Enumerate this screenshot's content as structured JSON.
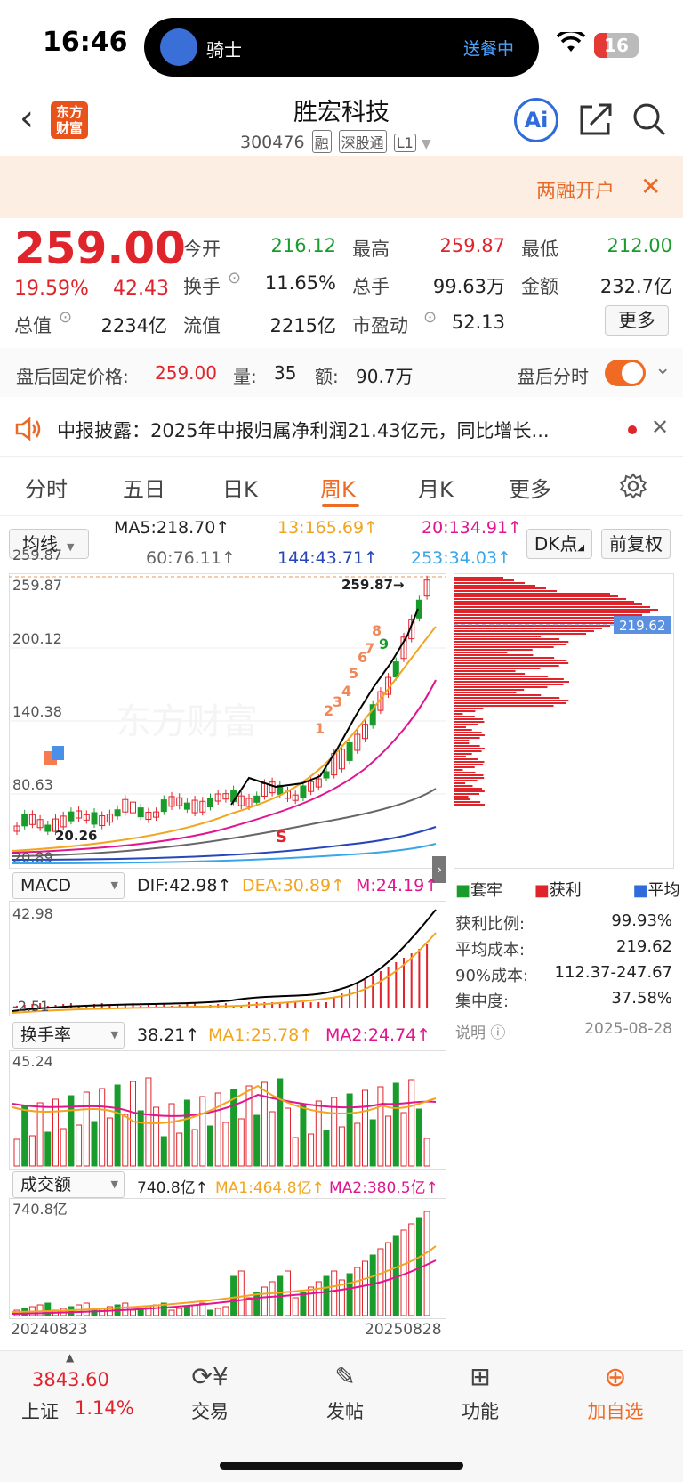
{
  "status": {
    "time": "16:46",
    "activity_name": "骑士",
    "activity_status": "送餐中",
    "battery": "16"
  },
  "header": {
    "title": "胜宏科技",
    "code": "300476",
    "tags": [
      "融",
      "深股通",
      "L1"
    ],
    "logo_text": "东方财富",
    "ai_label": "Ai"
  },
  "banner": {
    "text": "两融开户"
  },
  "quote": {
    "price": "259.00",
    "change_pct": "19.59%",
    "change_amt": "42.43",
    "fields": [
      {
        "label": "今开",
        "value": "216.12",
        "color": "green"
      },
      {
        "label": "最高",
        "value": "259.87",
        "color": "red"
      },
      {
        "label": "最低",
        "value": "212.00",
        "color": "green"
      },
      {
        "label": "换手",
        "value": "11.65%"
      },
      {
        "label": "总手",
        "value": "99.63万"
      },
      {
        "label": "金额",
        "value": "232.7亿"
      },
      {
        "label": "总值",
        "value": "2234亿"
      },
      {
        "label": "流值",
        "value": "2215亿"
      },
      {
        "label": "市盈动",
        "value": "52.13"
      }
    ],
    "more_label": "更多"
  },
  "after_hours": {
    "label": "盘后固定价格:",
    "price": "259.00",
    "vol_label": "量:",
    "vol": "35",
    "amt_label": "额:",
    "amt": "90.7万",
    "toggle_label": "盘后分时"
  },
  "news": {
    "text": "中报披露：2025年中报归属净利润21.43亿元，同比增长..."
  },
  "tabs": [
    "分时",
    "五日",
    "日K",
    "周K",
    "月K",
    "更多"
  ],
  "active_tab": "周K",
  "ma": {
    "selector": "均线",
    "ma5": "MA5:218.70↑",
    "ma13": "13:165.69↑",
    "ma20": "20:134.91↑",
    "ma60": "60:76.11↑",
    "ma144": "144:43.71↑",
    "ma253": "253:34.03↑",
    "dk_label": "DK点",
    "adjust_label": "前复权"
  },
  "kline": {
    "y_labels": [
      "259.87",
      "200.12",
      "140.38",
      "80.63",
      "20.89"
    ],
    "max_label": "259.87→",
    "min_label": "20.26",
    "watermark": "东方财富",
    "signal_numbers": [
      "1",
      "2",
      "3",
      "4",
      "5",
      "6",
      "7",
      "8",
      "9"
    ],
    "cost_price_label": "219.62"
  },
  "chips": {
    "legend": [
      "套牢",
      "获利",
      "平均"
    ],
    "rows": [
      {
        "label": "获利比例:",
        "value": "99.93%"
      },
      {
        "label": "平均成本:",
        "value": "219.62"
      },
      {
        "label": "90%成本:",
        "value": "112.37-247.67"
      },
      {
        "label": "集中度:",
        "value": "37.58%"
      }
    ],
    "note_label": "说明",
    "date": "2025-08-28"
  },
  "macd": {
    "selector": "MACD",
    "dif": "DIF:42.98↑",
    "dea": "DEA:30.89↑",
    "m": "M:24.19↑",
    "top": "42.98",
    "bottom": "-2.51"
  },
  "turnover": {
    "selector": "换手率",
    "value": "38.21↑",
    "ma1": "MA1:25.78↑",
    "ma2": "MA2:24.74↑",
    "top": "45.24"
  },
  "volume": {
    "selector": "成交额",
    "value": "740.8亿↑",
    "ma1": "MA1:464.8亿↑",
    "ma2": "MA2:380.5亿↑",
    "top": "740.8亿"
  },
  "dates": {
    "start": "20240823",
    "end": "20250828"
  },
  "bottom": {
    "index_value": "3843.60",
    "index_name": "上证",
    "index_pct": "1.14%",
    "items": [
      "交易",
      "发帖",
      "功能",
      "加自选"
    ]
  }
}
